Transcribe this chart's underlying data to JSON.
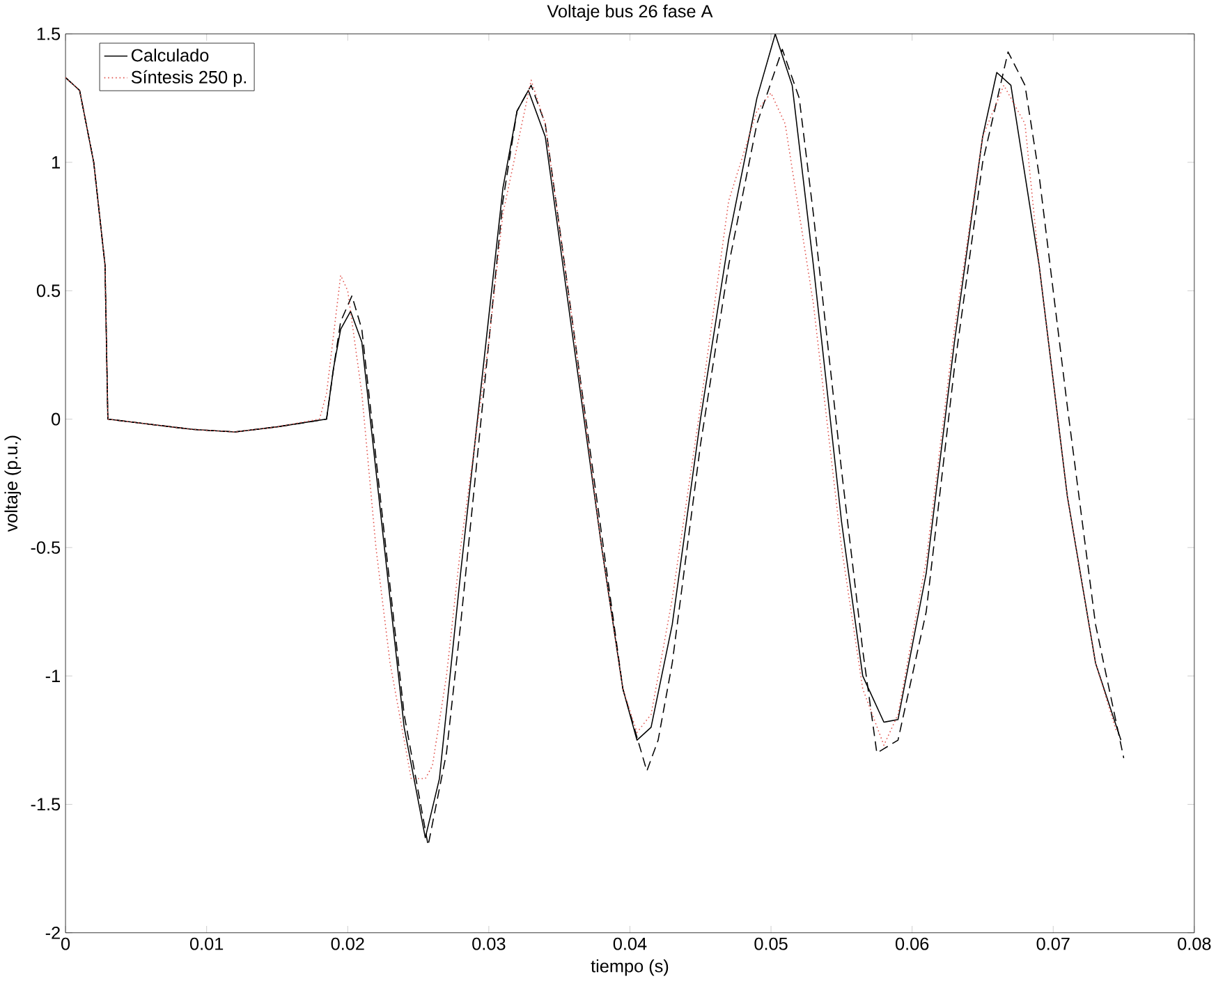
{
  "chart_data": {
    "type": "line",
    "title": "Voltaje bus 26 fase A",
    "xlabel": "tiempo (s)",
    "ylabel": "voltaje (p.u.)",
    "xlim": [
      0,
      0.08
    ],
    "xticks": [
      0,
      0.01,
      0.02,
      0.03,
      0.04,
      0.05,
      0.06,
      0.07,
      0.08
    ],
    "ylim": [
      -2,
      1.5
    ],
    "yticks": [
      -2,
      -1.5,
      -1,
      -0.5,
      0,
      0.5,
      1,
      1.5
    ],
    "grid": false,
    "legend": "top left",
    "series": [
      {
        "name": "Calculado",
        "color": "#000000",
        "line_style": "solid",
        "x": [
          0,
          0.001,
          0.002,
          0.0028,
          0.003,
          0.006,
          0.009,
          0.012,
          0.015,
          0.0185,
          0.019,
          0.0195,
          0.0202,
          0.021,
          0.022,
          0.023,
          0.024,
          0.0255,
          0.0265,
          0.028,
          0.03,
          0.031,
          0.032,
          0.0328,
          0.034,
          0.036,
          0.038,
          0.0395,
          0.0405,
          0.0415,
          0.043,
          0.045,
          0.047,
          0.049,
          0.0503,
          0.0515,
          0.053,
          0.055,
          0.0565,
          0.058,
          0.059,
          0.061,
          0.063,
          0.065,
          0.066,
          0.067,
          0.069,
          0.071,
          0.073,
          0.0748
        ],
        "values": [
          1.33,
          1.28,
          1.0,
          0.6,
          0.0,
          -0.02,
          -0.04,
          -0.05,
          -0.03,
          0.0,
          0.2,
          0.35,
          0.42,
          0.3,
          -0.2,
          -0.7,
          -1.2,
          -1.63,
          -1.4,
          -0.6,
          0.4,
          0.9,
          1.2,
          1.28,
          1.1,
          0.3,
          -0.5,
          -1.05,
          -1.25,
          -1.2,
          -0.8,
          0.0,
          0.7,
          1.25,
          1.5,
          1.3,
          0.6,
          -0.4,
          -1.0,
          -1.18,
          -1.17,
          -0.6,
          0.3,
          1.1,
          1.35,
          1.3,
          0.6,
          -0.3,
          -0.95,
          -1.25
        ]
      },
      {
        "color": "#000000",
        "line_style": "dashed",
        "x": [
          0,
          0.001,
          0.002,
          0.0028,
          0.003,
          0.006,
          0.009,
          0.012,
          0.015,
          0.0185,
          0.019,
          0.0195,
          0.0203,
          0.021,
          0.022,
          0.023,
          0.024,
          0.0257,
          0.027,
          0.028,
          0.03,
          0.031,
          0.032,
          0.033,
          0.034,
          0.036,
          0.038,
          0.0395,
          0.0412,
          0.042,
          0.043,
          0.045,
          0.047,
          0.049,
          0.0508,
          0.052,
          0.053,
          0.055,
          0.0565,
          0.0575,
          0.059,
          0.061,
          0.063,
          0.065,
          0.0668,
          0.068,
          0.069,
          0.071,
          0.073,
          0.075
        ],
        "values": [
          1.33,
          1.28,
          1.0,
          0.6,
          0.0,
          -0.02,
          -0.04,
          -0.05,
          -0.03,
          0.0,
          0.2,
          0.38,
          0.48,
          0.35,
          -0.15,
          -0.65,
          -1.15,
          -1.66,
          -1.3,
          -0.8,
          0.3,
          0.85,
          1.2,
          1.3,
          1.15,
          0.35,
          -0.45,
          -1.05,
          -1.37,
          -1.25,
          -0.95,
          -0.1,
          0.6,
          1.15,
          1.44,
          1.25,
          0.8,
          -0.2,
          -0.9,
          -1.3,
          -1.25,
          -0.75,
          0.2,
          1.0,
          1.43,
          1.3,
          0.95,
          0.05,
          -0.8,
          -1.32
        ]
      },
      {
        "name": "Síntesis 250 p.",
        "color": "#e0504a",
        "line_style": "dotted",
        "x": [
          0,
          0.001,
          0.002,
          0.0028,
          0.003,
          0.006,
          0.009,
          0.012,
          0.015,
          0.018,
          0.0185,
          0.0195,
          0.02,
          0.021,
          0.022,
          0.023,
          0.0245,
          0.0255,
          0.026,
          0.027,
          0.028,
          0.03,
          0.031,
          0.033,
          0.034,
          0.036,
          0.038,
          0.0395,
          0.0405,
          0.0415,
          0.043,
          0.045,
          0.047,
          0.049,
          0.05,
          0.051,
          0.053,
          0.055,
          0.0565,
          0.058,
          0.059,
          0.061,
          0.063,
          0.065,
          0.0665,
          0.068,
          0.069,
          0.071,
          0.073,
          0.0745
        ],
        "values": [
          1.33,
          1.28,
          1.0,
          0.6,
          0.0,
          -0.02,
          -0.04,
          -0.05,
          -0.03,
          0.0,
          0.1,
          0.56,
          0.5,
          0.1,
          -0.5,
          -0.95,
          -1.4,
          -1.4,
          -1.35,
          -1.0,
          -0.5,
          0.3,
          0.8,
          1.32,
          1.15,
          0.35,
          -0.5,
          -1.05,
          -1.22,
          -1.15,
          -0.7,
          0.05,
          0.85,
          1.2,
          1.27,
          1.15,
          0.45,
          -0.5,
          -1.05,
          -1.27,
          -1.15,
          -0.55,
          0.35,
          1.1,
          1.3,
          1.15,
          0.6,
          -0.3,
          -0.95,
          -1.22
        ]
      }
    ]
  }
}
